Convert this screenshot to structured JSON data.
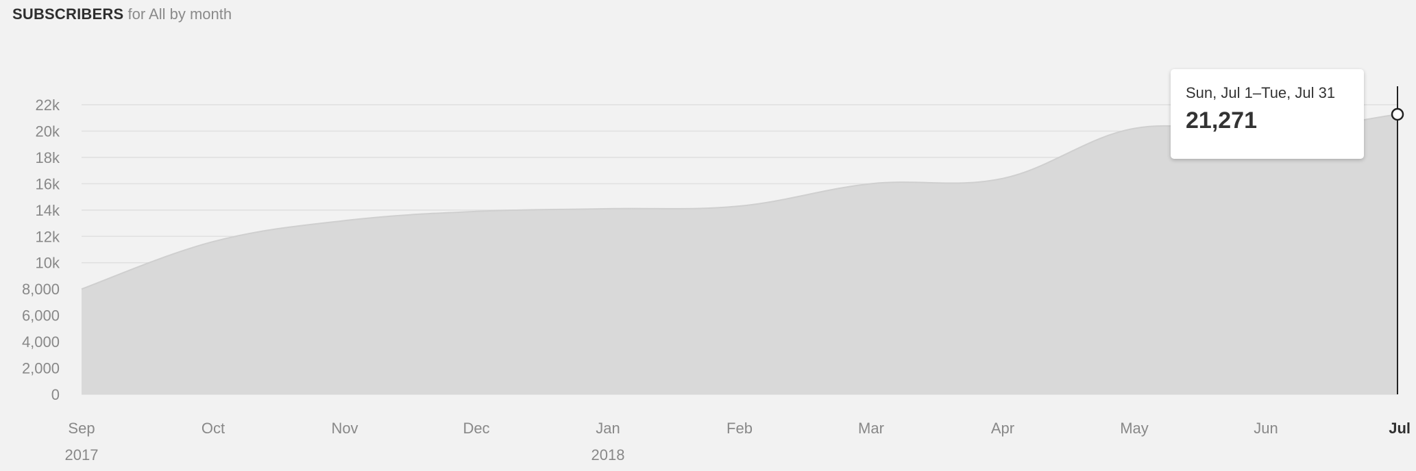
{
  "header": {
    "title": "SUBSCRIBERS",
    "subtitle": "for All by month"
  },
  "tooltip": {
    "range": "Sun, Jul 1–Tue, Jul 31",
    "value": "21,271"
  },
  "colors": {
    "area_fill": "#d9d9d9",
    "area_line": "#cfcfcf",
    "grid": "#e0e0e0",
    "cursor": "#222222"
  },
  "chart_data": {
    "type": "area",
    "title": "SUBSCRIBERS",
    "subtitle": "for All by month",
    "categories": [
      "Sep",
      "Oct",
      "Nov",
      "Dec",
      "Jan",
      "Feb",
      "Mar",
      "Apr",
      "May",
      "Jun",
      "Jul"
    ],
    "year_labels": [
      {
        "index": 0,
        "label": "2017"
      },
      {
        "index": 4,
        "label": "2018"
      }
    ],
    "series": [
      {
        "values": [
          8000,
          11600,
          13200,
          13900,
          14100,
          14300,
          16000,
          16400,
          20200,
          19900,
          21271
        ]
      }
    ],
    "y_ticks": [
      {
        "value": 0,
        "label": "0"
      },
      {
        "value": 2000,
        "label": "2,000"
      },
      {
        "value": 4000,
        "label": "4,000"
      },
      {
        "value": 6000,
        "label": "6,000"
      },
      {
        "value": 8000,
        "label": "8,000"
      },
      {
        "value": 10000,
        "label": "10k"
      },
      {
        "value": 12000,
        "label": "12k"
      },
      {
        "value": 14000,
        "label": "14k"
      },
      {
        "value": 16000,
        "label": "16k"
      },
      {
        "value": 18000,
        "label": "18k"
      },
      {
        "value": 20000,
        "label": "20k"
      },
      {
        "value": 22000,
        "label": "22k"
      }
    ],
    "ylim": [
      0,
      22000
    ],
    "highlight_index": 10,
    "grid": true,
    "legend": "none"
  }
}
